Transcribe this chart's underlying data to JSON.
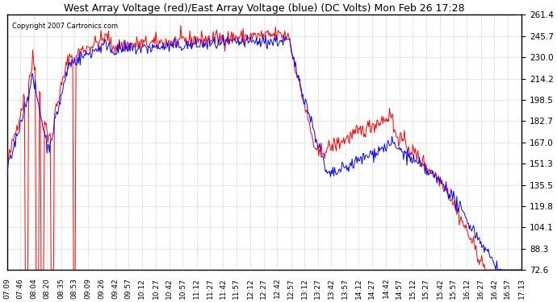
{
  "title": "West Array Voltage (red)/East Array Voltage (blue) (DC Volts) Mon Feb 26 17:28",
  "copyright": "Copyright 2007 Cartronics.com",
  "ylabel_values": [
    261.4,
    245.7,
    230.0,
    214.2,
    198.5,
    182.7,
    167.0,
    151.3,
    135.5,
    119.8,
    104.1,
    88.3,
    72.6
  ],
  "ymin": 72.6,
  "ymax": 261.4,
  "background_color": "#ffffff",
  "grid_color": "#aaaaaa",
  "red_color": "#ff0000",
  "blue_color": "#0000ff",
  "x_labels": [
    "07:09",
    "07:46",
    "08:04",
    "08:20",
    "08:35",
    "08:53",
    "09:09",
    "09:26",
    "09:42",
    "09:57",
    "10:12",
    "10:27",
    "10:42",
    "10:57",
    "11:12",
    "11:27",
    "11:42",
    "11:57",
    "12:12",
    "12:27",
    "12:42",
    "12:57",
    "13:12",
    "13:27",
    "13:42",
    "13:57",
    "14:12",
    "14:27",
    "14:42",
    "14:57",
    "15:12",
    "15:27",
    "15:42",
    "15:57",
    "16:12",
    "16:27",
    "16:42",
    "16:57",
    "17:13"
  ]
}
